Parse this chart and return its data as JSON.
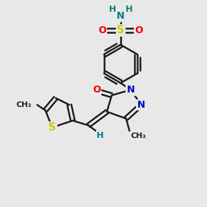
{
  "background_color": "#e8e8e8",
  "bond_color": "#1a1a1a",
  "line_width": 1.8,
  "figsize": [
    3.0,
    3.0
  ],
  "dpi": 100,
  "colors": {
    "S": "#cccc00",
    "N": "#008080",
    "N_ring": "#0000cc",
    "O": "#ff0000",
    "C": "#1a1a1a",
    "H": "#008080"
  }
}
